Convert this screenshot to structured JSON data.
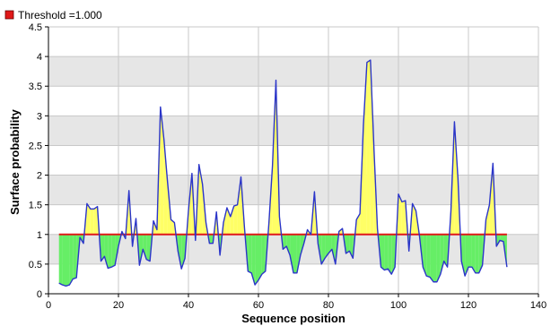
{
  "chart_data": {
    "type": "area",
    "title": "",
    "xlabel": "Sequence position",
    "ylabel": "Surface probability",
    "xlim": [
      0,
      140
    ],
    "ylim": [
      0,
      4.5
    ],
    "x_ticks": [
      0,
      20,
      40,
      60,
      80,
      100,
      120,
      140
    ],
    "y_ticks": [
      0,
      0.5,
      1,
      1.5,
      2,
      2.5,
      3,
      3.5,
      4,
      4.5
    ],
    "grid": true,
    "legend_position": "top-left",
    "threshold": {
      "label": "Threshold =1.000",
      "value": 1.0,
      "x_start": 3,
      "x_end": 131
    },
    "series": [
      {
        "x": [
          3,
          4,
          5,
          6,
          7,
          8,
          9,
          10,
          11,
          12,
          13,
          14,
          15,
          16,
          17,
          18,
          19,
          20,
          21,
          22,
          23,
          24,
          25,
          26,
          27,
          28,
          29,
          30,
          31,
          32,
          33,
          34,
          35,
          36,
          37,
          38,
          39,
          40,
          41,
          42,
          43,
          44,
          45,
          46,
          47,
          48,
          49,
          50,
          51,
          52,
          53,
          54,
          55,
          56,
          57,
          58,
          59,
          60,
          61,
          62,
          63,
          64,
          65,
          66,
          67,
          68,
          69,
          70,
          71,
          72,
          73,
          74,
          75,
          76,
          77,
          78,
          79,
          80,
          81,
          82,
          83,
          84,
          85,
          86,
          87,
          88,
          89,
          90,
          91,
          92,
          93,
          94,
          95,
          96,
          97,
          98,
          99,
          100,
          101,
          102,
          103,
          104,
          105,
          106,
          107,
          108,
          109,
          110,
          111,
          112,
          113,
          114,
          115,
          116,
          117,
          118,
          119,
          120,
          121,
          122,
          123,
          124,
          125,
          126,
          127,
          128,
          129,
          130,
          131
        ],
        "y": [
          0.18,
          0.15,
          0.13,
          0.15,
          0.25,
          0.27,
          0.95,
          0.85,
          1.52,
          1.43,
          1.43,
          1.47,
          0.55,
          0.63,
          0.43,
          0.45,
          0.48,
          0.8,
          1.05,
          0.93,
          1.74,
          0.8,
          1.27,
          0.48,
          0.75,
          0.58,
          0.55,
          1.23,
          1.08,
          3.15,
          2.6,
          1.9,
          1.25,
          1.2,
          0.72,
          0.42,
          0.6,
          1.4,
          2.03,
          0.9,
          2.18,
          1.85,
          1.2,
          0.85,
          0.85,
          1.38,
          0.65,
          1.2,
          1.45,
          1.3,
          1.48,
          1.5,
          1.97,
          1.12,
          0.38,
          0.35,
          0.15,
          0.23,
          0.33,
          0.38,
          1.2,
          2.15,
          3.6,
          1.3,
          0.75,
          0.8,
          0.65,
          0.35,
          0.35,
          0.65,
          0.85,
          1.08,
          1.0,
          1.72,
          0.85,
          0.5,
          0.6,
          0.68,
          0.75,
          0.5,
          1.05,
          1.1,
          0.68,
          0.72,
          0.6,
          1.25,
          1.35,
          2.85,
          3.9,
          3.94,
          2.45,
          1.1,
          0.45,
          0.4,
          0.42,
          0.33,
          0.45,
          1.68,
          1.55,
          1.57,
          0.72,
          1.52,
          1.4,
          0.98,
          0.45,
          0.3,
          0.28,
          0.2,
          0.2,
          0.33,
          0.55,
          0.45,
          1.4,
          2.9,
          1.95,
          0.55,
          0.3,
          0.45,
          0.45,
          0.35,
          0.35,
          0.48,
          1.25,
          1.5,
          2.2,
          0.8,
          0.9,
          0.88,
          0.45
        ]
      }
    ],
    "colors": {
      "line": "#2b35c9",
      "threshold": "#e01818",
      "above_fill": "#ffff66",
      "below_fill": "#66ee66",
      "band_fill": "#e6e6e6",
      "grid": "#c8c8c8"
    }
  }
}
